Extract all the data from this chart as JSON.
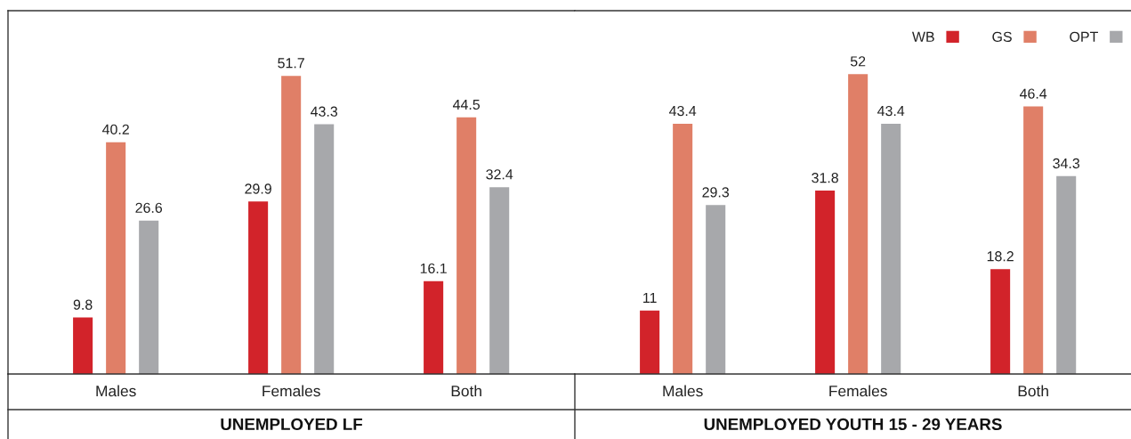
{
  "chart_data": [
    {
      "type": "bar",
      "xlabel": "UNEMPLOYED LF",
      "categories": [
        "Males",
        "Females",
        "Both"
      ],
      "series": [
        {
          "color": "#d2232a",
          "values": [
            9.8,
            29.9,
            16.1
          ]
        },
        {
          "color": "#e07f67",
          "values": [
            40.2,
            51.7,
            44.5
          ]
        },
        {
          "color": "#a7a8ab",
          "values": [
            26.6,
            43.3,
            32.4
          ]
        }
      ],
      "ylim": [
        0,
        63
      ],
      "data_labels": true,
      "tick_labels": "x"
    },
    {
      "type": "bar",
      "xlabel": "UNEMPLOYED YOUTH 15 - 29 YEARS",
      "categories": [
        "Males",
        "Females",
        "Both"
      ],
      "series": [
        {
          "name": "WB",
          "color": "#d2232a",
          "values": [
            11,
            31.8,
            18.2
          ]
        },
        {
          "name": "GS",
          "color": "#e07f67",
          "values": [
            43.4,
            52,
            46.4
          ]
        },
        {
          "name": "OPT",
          "color": "#a7a8ab",
          "values": [
            29.3,
            43.4,
            34.3
          ]
        }
      ],
      "ylim": [
        0,
        63
      ],
      "data_labels": true,
      "tick_labels": "x",
      "legend": "top right"
    }
  ]
}
